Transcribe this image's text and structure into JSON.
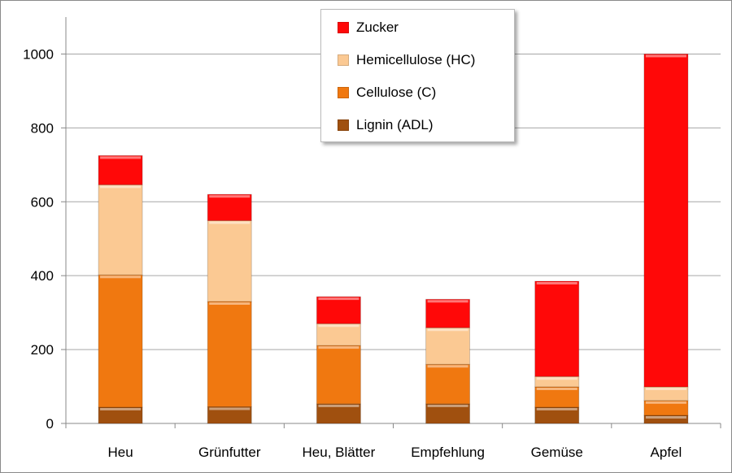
{
  "chart_data": {
    "type": "bar",
    "stacked": true,
    "title": "",
    "xlabel": "",
    "ylabel": "",
    "ylim": [
      0,
      1100
    ],
    "yticks": [
      0,
      200,
      400,
      600,
      800,
      1000
    ],
    "grid": true,
    "legend_position": "top-center",
    "categories": [
      "Heu",
      "Grünfutter",
      "Heu, Blätter",
      "Empfehlung",
      "Gemüse",
      "Apfel"
    ],
    "series": [
      {
        "name": "Lignin (ADL)",
        "color": "#a0500f",
        "values": [
          44,
          45,
          53,
          53,
          44,
          22
        ]
      },
      {
        "name": "Cellulose (C)",
        "color": "#f07810",
        "values": [
          358,
          285,
          158,
          107,
          55,
          40
        ]
      },
      {
        "name": "Hemicellulose (HC)",
        "color": "#fbc993",
        "values": [
          244,
          219,
          59,
          99,
          28,
          37
        ]
      },
      {
        "name": "Zucker",
        "color": "#ff0808",
        "values": [
          79,
          71,
          73,
          77,
          258,
          901
        ]
      }
    ],
    "legend_order": [
      "Zucker",
      "Hemicellulose (HC)",
      "Cellulose (C)",
      "Lignin (ADL)"
    ]
  }
}
